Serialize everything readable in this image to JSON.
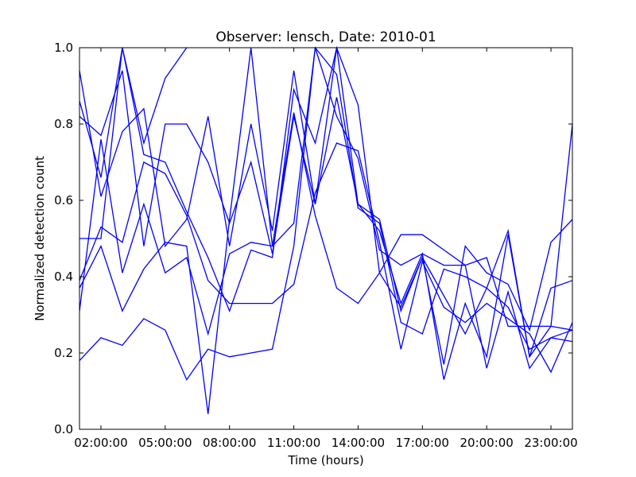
{
  "chart_data": {
    "type": "line",
    "title": "Observer: lensch, Date: 2010-01",
    "xlabel": "Time (hours)",
    "ylabel": "Normalized detection count",
    "xlim": [
      "01:00:00",
      "24:00:00"
    ],
    "ylim": [
      0,
      1
    ],
    "x_ticks": [
      "02:00:00",
      "05:00:00",
      "08:00:00",
      "11:00:00",
      "14:00:00",
      "17:00:00",
      "20:00:00",
      "23:00:00"
    ],
    "y_ticks": [
      "0.0",
      "0.2",
      "0.4",
      "0.6",
      "0.8",
      "1.0"
    ],
    "grid": false,
    "line_color": "#0000ff",
    "x": [
      "01:00:00",
      "02:00:00",
      "03:00:00",
      "04:00:00",
      "05:00:00",
      "06:00:00",
      "07:00:00",
      "08:00:00",
      "09:00:00",
      "10:00:00",
      "11:00:00",
      "12:00:00",
      "13:00:00",
      "14:00:00",
      "15:00:00",
      "16:00:00",
      "17:00:00",
      "18:00:00",
      "19:00:00",
      "20:00:00",
      "21:00:00",
      "22:00:00",
      "23:00:00",
      "24:00:00"
    ],
    "series": [
      {
        "values": [
          0.94,
          0.61,
          0.78,
          0.84,
          0.48,
          0.55,
          0.82,
          0.48,
          0.8,
          0.52,
          0.94,
          0.59,
          1.0,
          0.59,
          0.55,
          0.31,
          0.45,
          0.17,
          0.48,
          0.41,
          0.38,
          0.26,
          0.49,
          0.55
        ]
      },
      {
        "values": [
          0.86,
          0.66,
          1.0,
          0.72,
          0.7,
          0.57,
          0.45,
          0.31,
          0.47,
          0.45,
          0.89,
          0.75,
          1.0,
          0.85,
          0.41,
          0.32,
          0.45,
          0.35,
          0.25,
          0.37,
          0.52,
          0.19,
          0.27,
          0.8
        ]
      },
      {
        "values": [
          0.82,
          0.77,
          0.94,
          0.48,
          0.8,
          0.8,
          0.7,
          0.54,
          0.7,
          0.46,
          0.82,
          0.59,
          0.87,
          0.59,
          0.52,
          0.33,
          0.46,
          0.13,
          0.33,
          0.19,
          0.51,
          0.19,
          0.37,
          0.39
        ]
      },
      {
        "values": [
          0.5,
          0.5,
          1.0,
          0.75,
          0.92,
          1.0,
          null,
          null,
          null,
          null,
          null,
          null,
          null,
          null,
          null,
          null,
          null,
          null,
          null,
          null,
          null,
          null,
          null,
          null
        ]
      },
      {
        "values": [
          0.31,
          0.76,
          0.41,
          0.59,
          0.41,
          0.45,
          0.25,
          0.46,
          0.49,
          0.48,
          0.54,
          1.0,
          0.82,
          0.71,
          0.47,
          0.43,
          0.46,
          0.43,
          0.43,
          0.45,
          0.27,
          0.27,
          0.27,
          0.26
        ]
      },
      {
        "values": [
          0.39,
          0.53,
          0.49,
          0.7,
          0.67,
          0.56,
          0.39,
          0.33,
          0.33,
          0.33,
          0.38,
          0.62,
          0.75,
          0.73,
          0.49,
          0.21,
          0.44,
          0.32,
          0.28,
          0.33,
          0.29,
          0.25,
          0.15,
          0.28
        ]
      },
      {
        "values": [
          0.37,
          0.48,
          0.31,
          0.42,
          0.49,
          0.48,
          0.04,
          0.55,
          1.0,
          0.48,
          0.83,
          0.56,
          0.37,
          0.33,
          0.41,
          0.51,
          0.51,
          0.47,
          0.43,
          0.16,
          0.36,
          0.16,
          0.24,
          0.23
        ]
      },
      {
        "values": [
          0.18,
          0.24,
          0.22,
          0.29,
          0.26,
          0.13,
          0.21,
          0.19,
          0.2,
          0.21,
          0.48,
          1.0,
          0.93,
          0.58,
          0.54,
          0.28,
          0.25,
          0.42,
          0.4,
          0.37,
          0.32,
          0.21,
          0.24,
          0.26
        ]
      }
    ]
  }
}
